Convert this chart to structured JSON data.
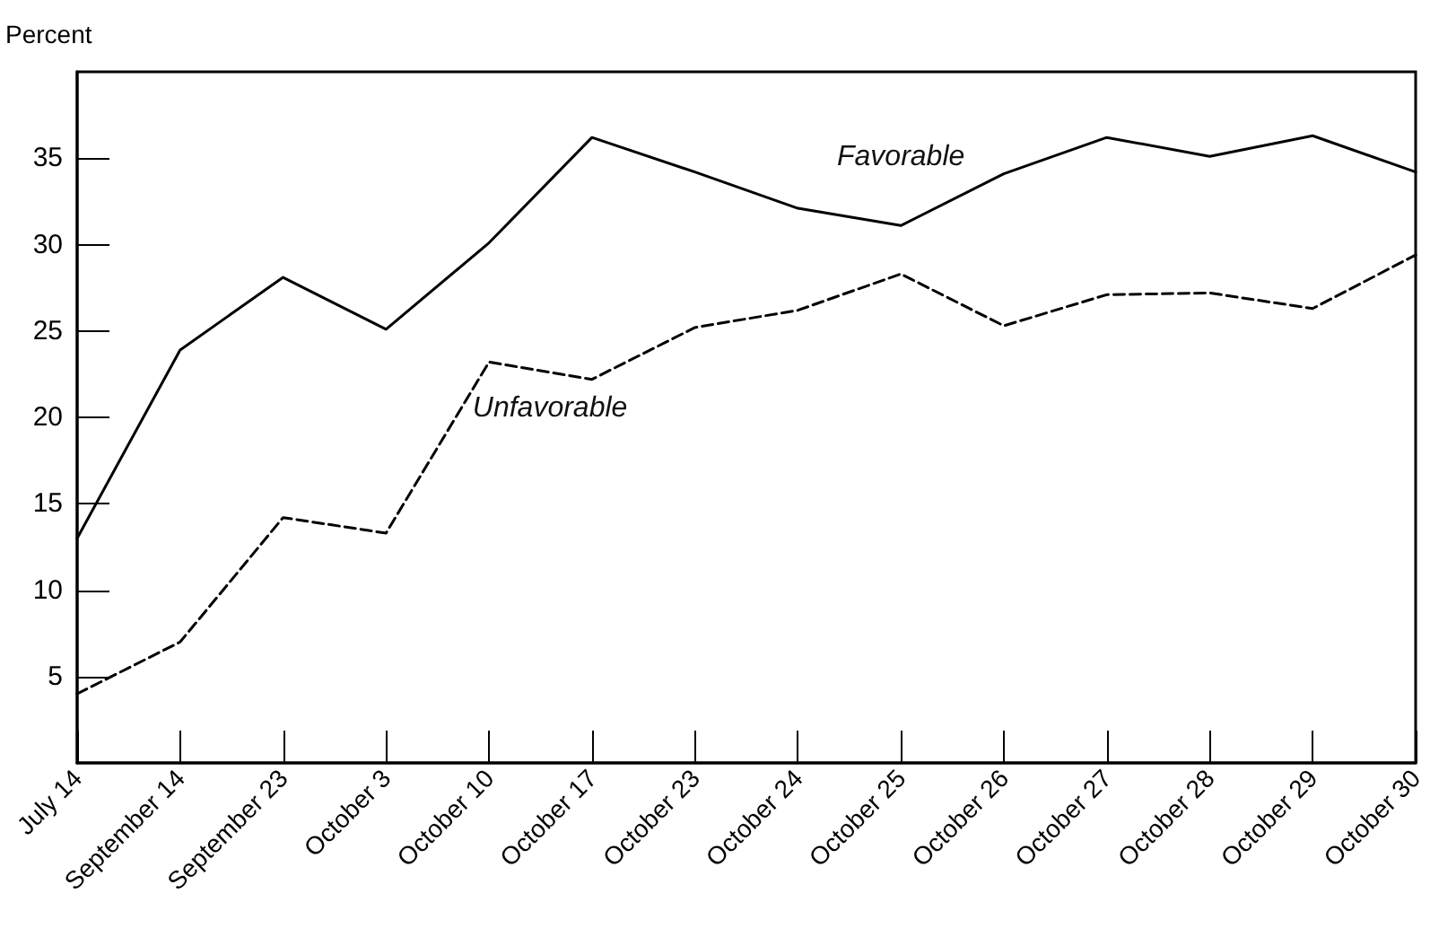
{
  "chart_data": {
    "type": "line",
    "ylabel": "Percent",
    "categories": [
      "July 14",
      "September 14",
      "September 23",
      "October 3",
      "October 10",
      "October 17",
      "October 23",
      "October 24",
      "October 25",
      "October 26",
      "October 27",
      "October 28",
      "October 29",
      "October 30"
    ],
    "series": [
      {
        "name": "Favorable",
        "color": "#000000",
        "line_style": "solid",
        "values": [
          13,
          23.9,
          28.1,
          25.1,
          30.1,
          36.2,
          34.2,
          32.1,
          31.1,
          34.1,
          36.2,
          35.1,
          36.3,
          34.2
        ]
      },
      {
        "name": "Unfavorable",
        "color": "#000000",
        "line_style": "dashed",
        "values": [
          4,
          7,
          14.2,
          13.3,
          23.2,
          22.2,
          25.2,
          26.2,
          28.3,
          25.3,
          27.1,
          27.2,
          26.3,
          29.4
        ]
      }
    ],
    "ylim": [
      0,
      40
    ],
    "yticks": [
      5,
      10,
      15,
      20,
      25,
      30,
      35
    ],
    "grid": false,
    "legend": false,
    "marker": "none"
  }
}
